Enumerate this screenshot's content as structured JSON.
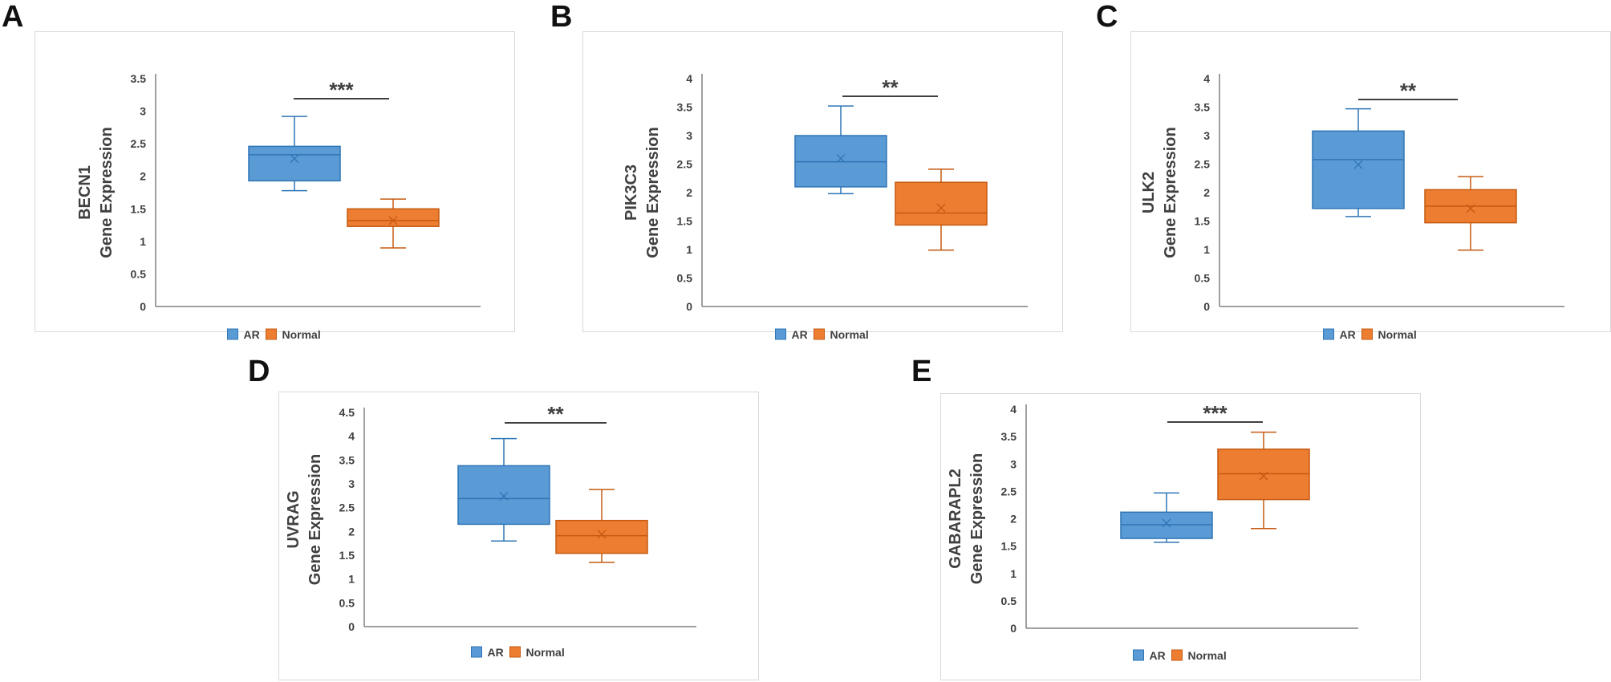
{
  "colors": {
    "ar_fill": "#5b9bd5",
    "ar_edge": "#2e75b6",
    "normal_fill": "#ed7d31",
    "normal_edge": "#c55a11",
    "axis": "#808080",
    "text": "#404040"
  },
  "chart_data": [
    {
      "type": "box",
      "letter": "A",
      "title": "",
      "ylabel_line1": "BECN1",
      "ylabel_line2": "Gene Expression",
      "ylim": [
        0,
        3.5
      ],
      "yticks": [
        "0",
        "0.5",
        "1",
        "1.5",
        "2",
        "2.5",
        "3",
        "3.5"
      ],
      "significance": "***",
      "legend": [
        "AR",
        "Normal"
      ],
      "series": [
        {
          "name": "AR",
          "min": 1.78,
          "q1": 1.93,
          "median": 2.33,
          "q3": 2.46,
          "max": 2.92,
          "mean": 2.27
        },
        {
          "name": "Normal",
          "min": 0.9,
          "q1": 1.23,
          "median": 1.32,
          "q3": 1.5,
          "max": 1.65,
          "mean": 1.32
        }
      ]
    },
    {
      "type": "box",
      "letter": "B",
      "title": "",
      "ylabel_line1": "PIK3C3",
      "ylabel_line2": "Gene Expression",
      "ylim": [
        0,
        4
      ],
      "yticks": [
        "0",
        "0.5",
        "1",
        "1.5",
        "2",
        "2.5",
        "3",
        "3.5",
        "4"
      ],
      "significance": "**",
      "legend": [
        "AR",
        "Normal"
      ],
      "series": [
        {
          "name": "AR",
          "min": 1.98,
          "q1": 2.1,
          "median": 2.54,
          "q3": 3.0,
          "max": 3.52,
          "mean": 2.6
        },
        {
          "name": "Normal",
          "min": 0.99,
          "q1": 1.43,
          "median": 1.64,
          "q3": 2.18,
          "max": 2.41,
          "mean": 1.73
        }
      ]
    },
    {
      "type": "box",
      "letter": "C",
      "title": "",
      "ylabel_line1": "ULK2",
      "ylabel_line2": "Gene Expression",
      "ylim": [
        0,
        4
      ],
      "yticks": [
        "0",
        "0.5",
        "1",
        "1.5",
        "2",
        "2.5",
        "3",
        "3.5",
        "4"
      ],
      "significance": "**",
      "legend": [
        "AR",
        "Normal"
      ],
      "series": [
        {
          "name": "AR",
          "min": 1.58,
          "q1": 1.72,
          "median": 2.58,
          "q3": 3.08,
          "max": 3.47,
          "mean": 2.49
        },
        {
          "name": "Normal",
          "min": 0.99,
          "q1": 1.47,
          "median": 1.76,
          "q3": 2.05,
          "max": 2.28,
          "mean": 1.72
        }
      ]
    },
    {
      "type": "box",
      "letter": "D",
      "title": "",
      "ylabel_line1": "UVRAG",
      "ylabel_line2": "Gene Expression",
      "ylim": [
        0,
        4.5
      ],
      "yticks": [
        "0",
        "0.5",
        "1",
        "1.5",
        "2",
        "2.5",
        "3",
        "3.5",
        "4",
        "4.5"
      ],
      "significance": "**",
      "legend": [
        "AR",
        "Normal"
      ],
      "series": [
        {
          "name": "AR",
          "min": 1.8,
          "q1": 2.15,
          "median": 2.69,
          "q3": 3.38,
          "max": 3.95,
          "mean": 2.74
        },
        {
          "name": "Normal",
          "min": 1.35,
          "q1": 1.54,
          "median": 1.91,
          "q3": 2.23,
          "max": 2.88,
          "mean": 1.94
        }
      ]
    },
    {
      "type": "box",
      "letter": "E",
      "title": "",
      "ylabel_line1": "GABARAPL2",
      "ylabel_line2": "Gene Expression",
      "ylim": [
        0,
        4
      ],
      "yticks": [
        "0",
        "0.5",
        "1",
        "1.5",
        "2",
        "2.5",
        "3",
        "3.5",
        "4"
      ],
      "significance": "***",
      "legend": [
        "AR",
        "Normal"
      ],
      "series": [
        {
          "name": "AR",
          "min": 1.57,
          "q1": 1.64,
          "median": 1.89,
          "q3": 2.12,
          "max": 2.47,
          "mean": 1.92
        },
        {
          "name": "Normal",
          "min": 1.82,
          "q1": 2.35,
          "median": 2.82,
          "q3": 3.27,
          "max": 3.58,
          "mean": 2.78
        }
      ]
    }
  ]
}
